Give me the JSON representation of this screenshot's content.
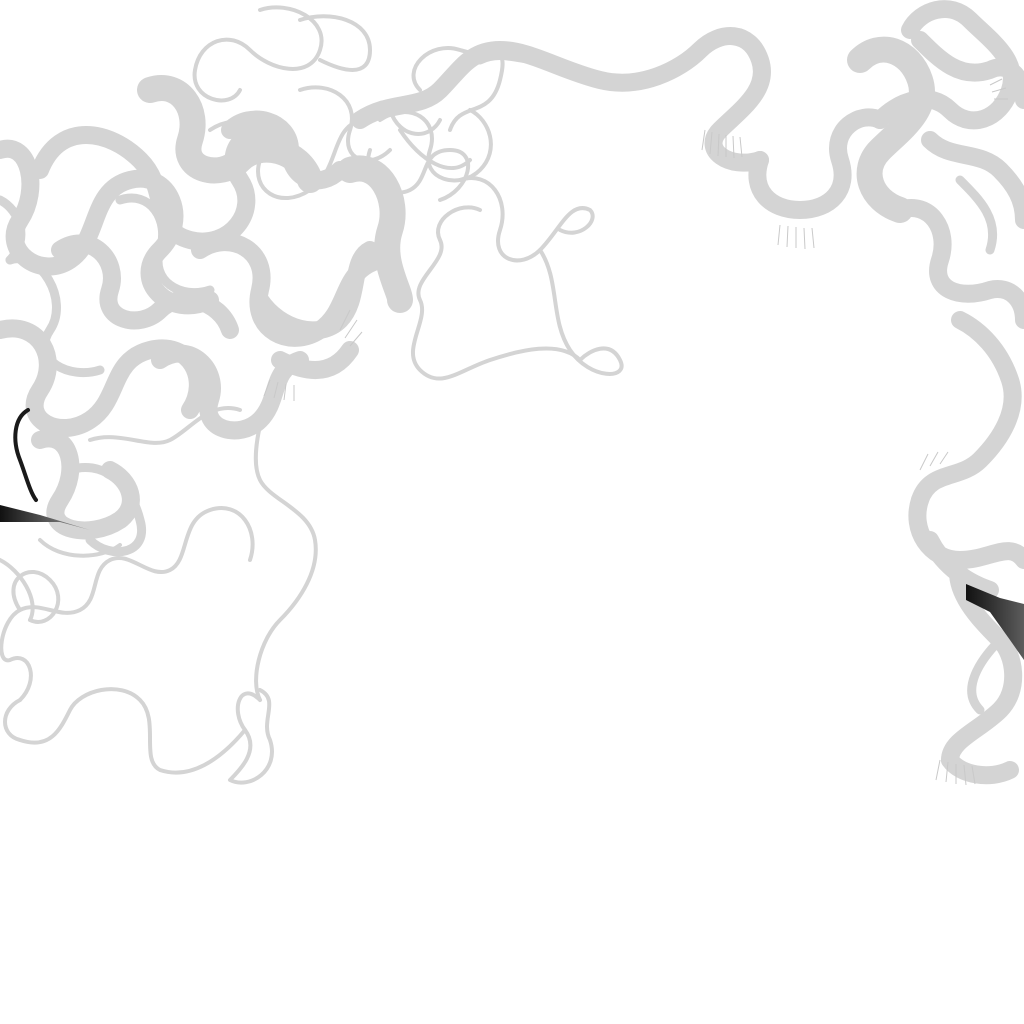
{
  "scene": {
    "background_color": "#ffffff",
    "ribbon_color": "#d4d4d4",
    "highlight_colors": [
      "#111111",
      "#6a6a6a"
    ]
  }
}
